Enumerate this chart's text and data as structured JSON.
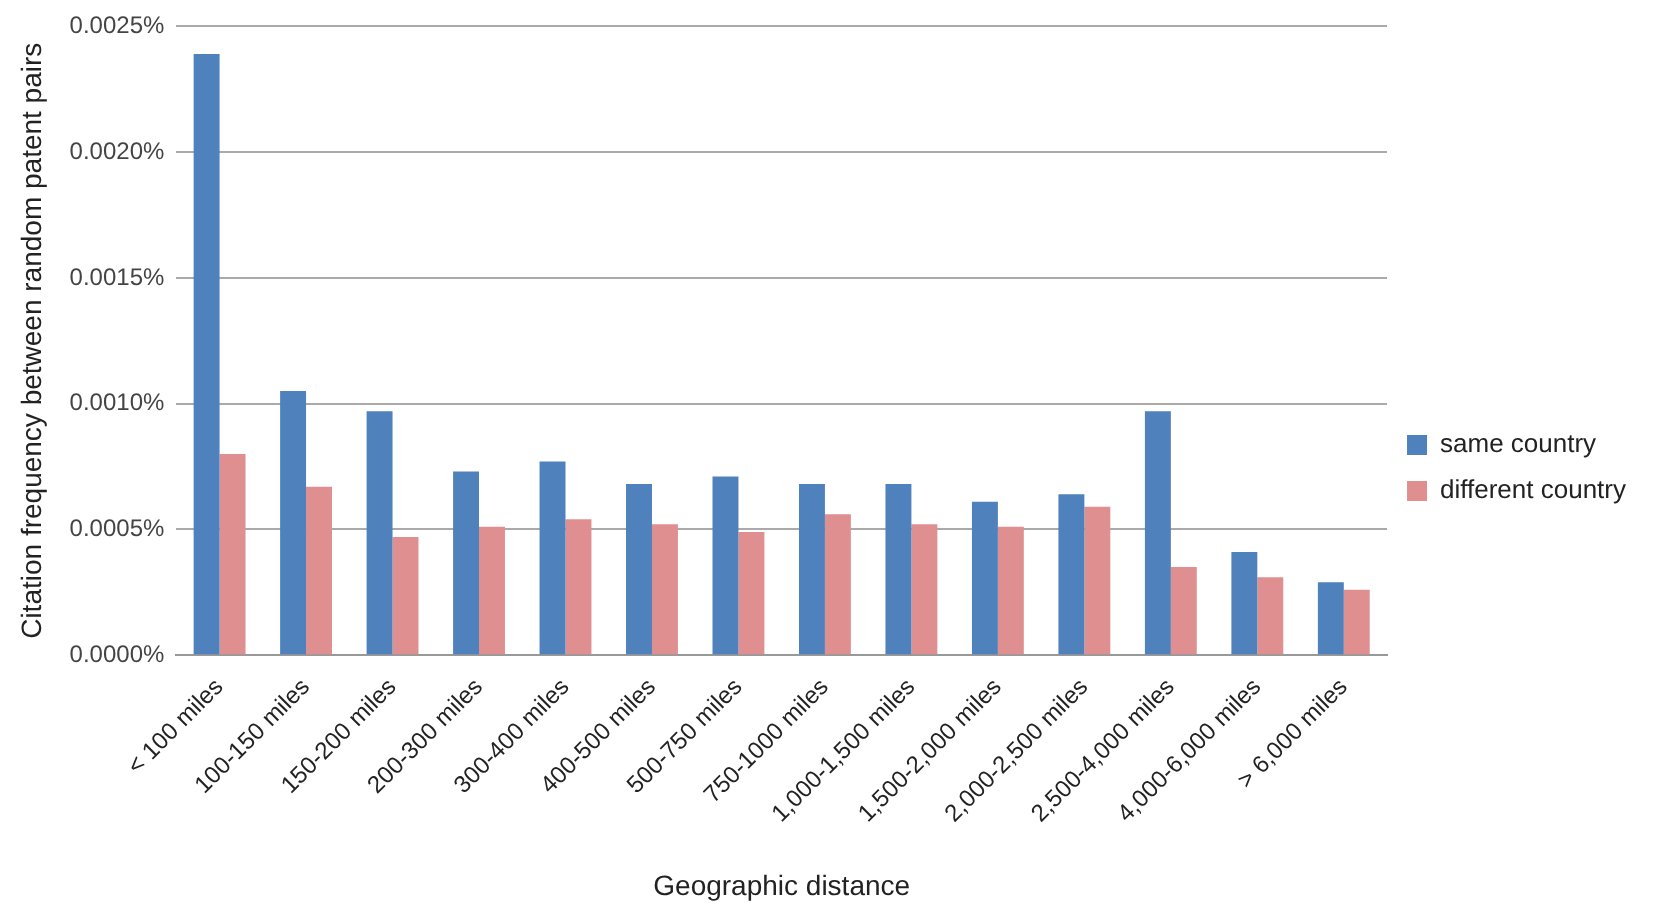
{
  "chart_data": {
    "type": "bar",
    "xlabel": "Geographic distance",
    "ylabel": "Citation frequency between random patent pairs",
    "categories": [
      "< 100 miles",
      "100-150 miles",
      "150-200 miles",
      "200-300 miles",
      "300-400 miles",
      "400-500 miles",
      "500-750 miles",
      "750-1000 miles",
      "1,000-1,500 miles",
      "1,500-2,000 miles",
      "2,000-2,500 miles",
      "2,500-4,000 miles",
      "4,000-6,000 miles",
      "> 6,000 miles"
    ],
    "series": [
      {
        "name": "same country",
        "color": "#4f81bd",
        "values": [
          0.00239,
          0.00105,
          0.00097,
          0.00073,
          0.00077,
          0.00068,
          0.00071,
          0.00068,
          0.00068,
          0.00061,
          0.00064,
          0.00097,
          0.00041,
          0.00029
        ]
      },
      {
        "name": "different country",
        "color": "#df8f8f",
        "values": [
          0.0008,
          0.00067,
          0.00047,
          0.00051,
          0.00054,
          0.00052,
          0.00049,
          0.00056,
          0.00052,
          0.00051,
          0.00059,
          0.00035,
          0.00031,
          0.00026
        ]
      }
    ],
    "ylim": [
      0,
      0.0025
    ],
    "yticks": [
      {
        "value": 0,
        "label": "0.0000%"
      },
      {
        "value": 0.0005,
        "label": "0.0005%"
      },
      {
        "value": 0.001,
        "label": "0.0010%"
      },
      {
        "value": 0.0015,
        "label": "0.0015%"
      },
      {
        "value": 0.002,
        "label": "0.0020%"
      },
      {
        "value": 0.0025,
        "label": "0.0025%"
      }
    ],
    "grid": "y",
    "legend": "right"
  }
}
